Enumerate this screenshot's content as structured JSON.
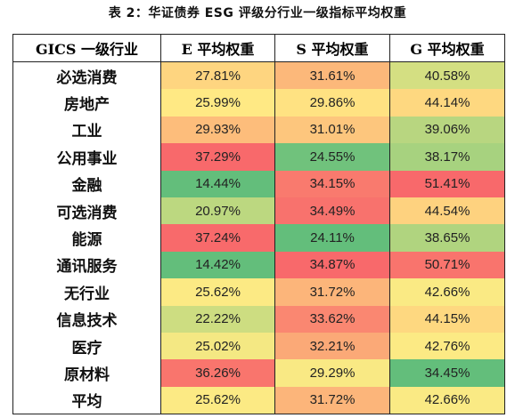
{
  "title": "表 2：华证债券 ESG 评级分行业一级指标平均权重",
  "chart_data": {
    "type": "table",
    "columns": [
      "GICS 一级行业",
      "E 平均权重",
      "S 平均权重",
      "G 平均权重"
    ],
    "rows": [
      {
        "industry": "必选消费",
        "e": "27.81%",
        "s": "31.61%",
        "g": "40.58%"
      },
      {
        "industry": "房地产",
        "e": "25.99%",
        "s": "29.86%",
        "g": "44.14%"
      },
      {
        "industry": "工业",
        "e": "29.93%",
        "s": "31.01%",
        "g": "39.06%"
      },
      {
        "industry": "公用事业",
        "e": "37.29%",
        "s": "24.55%",
        "g": "38.17%"
      },
      {
        "industry": "金融",
        "e": "14.44%",
        "s": "34.15%",
        "g": "51.41%"
      },
      {
        "industry": "可选消费",
        "e": "20.97%",
        "s": "34.49%",
        "g": "44.54%"
      },
      {
        "industry": "能源",
        "e": "37.24%",
        "s": "24.11%",
        "g": "38.65%"
      },
      {
        "industry": "通讯服务",
        "e": "14.42%",
        "s": "34.87%",
        "g": "50.71%"
      },
      {
        "industry": "无行业",
        "e": "25.62%",
        "s": "31.72%",
        "g": "42.66%"
      },
      {
        "industry": "信息技术",
        "e": "22.22%",
        "s": "33.62%",
        "g": "44.15%"
      },
      {
        "industry": "医疗",
        "e": "25.02%",
        "s": "32.21%",
        "g": "42.76%"
      },
      {
        "industry": "原材料",
        "e": "36.26%",
        "s": "29.29%",
        "g": "34.45%"
      },
      {
        "industry": "平均",
        "e": "25.62%",
        "s": "31.72%",
        "g": "42.66%"
      }
    ],
    "colors": {
      "low": "#63be7b",
      "mid": "#ffeb84",
      "high": "#f8696b"
    }
  }
}
